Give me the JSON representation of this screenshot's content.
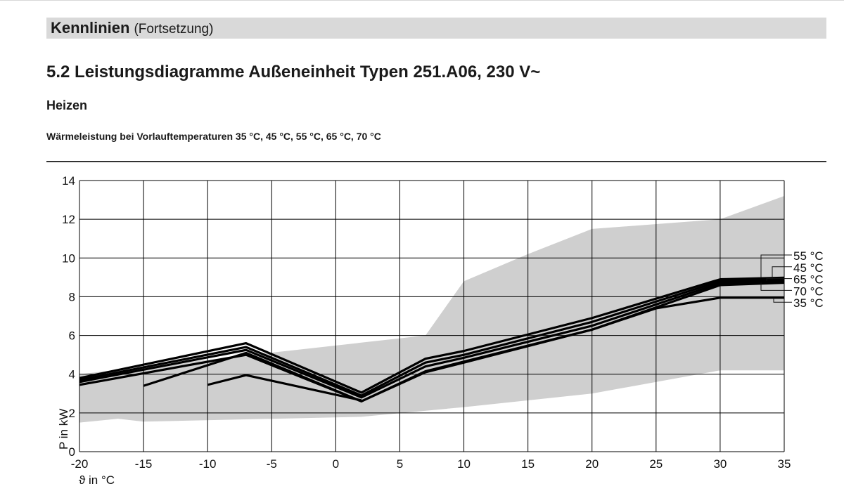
{
  "header": {
    "banner_title": "Kennlinien",
    "banner_subtitle": "(Fortsetzung)",
    "section_title": "5.2 Leistungsdiagramme Außeneinheit Typen 251.A06, 230 V~",
    "subsection_title": "Heizen",
    "caption": "Wärmeleistung bei Vorlauftemperaturen 35 °C, 45 °C, 55 °C, 65 °C, 70 °C"
  },
  "colors": {
    "range_band": "#cfcfcf",
    "curve": "#000000",
    "grid": "#000000"
  },
  "chart_data": {
    "type": "line",
    "xlabel": "ϑ in °C",
    "ylabel": "P in kW",
    "xlim": [
      -20,
      35
    ],
    "ylim": [
      0,
      14
    ],
    "x_ticks": [
      -20,
      -15,
      -10,
      -5,
      0,
      5,
      10,
      15,
      20,
      25,
      30,
      35
    ],
    "y_ticks": [
      0,
      2,
      4,
      6,
      8,
      10,
      12,
      14
    ],
    "x_tick_labels": [
      "-20",
      "-15",
      "-10",
      "-5",
      "0",
      "5",
      "10",
      "15",
      "20",
      "25",
      "30",
      "35"
    ],
    "y_tick_labels": [
      "0",
      "2",
      "4",
      "6",
      "8",
      "10",
      "12",
      "14"
    ],
    "grid": true,
    "legend_labels": [
      "55 °C",
      "45 °C",
      "65 °C",
      "70 °C",
      "35 °C"
    ],
    "range_band": {
      "upper": [
        [
          -20,
          4.0
        ],
        [
          7,
          6.0
        ],
        [
          10,
          8.8
        ],
        [
          15,
          10.2
        ],
        [
          20,
          11.5
        ],
        [
          30,
          12.0
        ],
        [
          35,
          13.2
        ]
      ],
      "lower": [
        [
          -20,
          1.5
        ],
        [
          -17,
          1.7
        ],
        [
          -15,
          1.55
        ],
        [
          2,
          1.8
        ],
        [
          10,
          2.3
        ],
        [
          20,
          3.0
        ],
        [
          30,
          4.2
        ],
        [
          35,
          4.2
        ]
      ]
    },
    "series": [
      {
        "name": "55 °C",
        "points": [
          [
            -20,
            3.8
          ],
          [
            -7,
            5.6
          ],
          [
            2,
            3.05
          ],
          [
            7,
            4.8
          ],
          [
            10,
            5.2
          ],
          [
            20,
            6.9
          ],
          [
            30,
            8.9
          ],
          [
            35,
            8.98
          ]
        ]
      },
      {
        "name": "45 °C",
        "points": [
          [
            -20,
            3.7
          ],
          [
            -7,
            5.4
          ],
          [
            2,
            2.9
          ],
          [
            7,
            4.6
          ],
          [
            10,
            5.0
          ],
          [
            20,
            6.7
          ],
          [
            30,
            8.8
          ],
          [
            35,
            8.9
          ]
        ]
      },
      {
        "name": "65 °C",
        "points": [
          [
            -20,
            3.6
          ],
          [
            -7,
            5.25
          ],
          [
            2,
            2.8
          ],
          [
            7,
            4.4
          ],
          [
            10,
            4.85
          ],
          [
            20,
            6.5
          ],
          [
            30,
            8.7
          ],
          [
            35,
            8.82
          ]
        ]
      },
      {
        "name": "70 °C",
        "points": [
          [
            -20,
            3.45
          ],
          [
            -7,
            5.0
          ],
          [
            2,
            2.6
          ],
          [
            7,
            4.15
          ],
          [
            10,
            4.65
          ],
          [
            20,
            6.3
          ],
          [
            30,
            8.6
          ],
          [
            35,
            8.72
          ]
        ]
      },
      {
        "name": "35 °C",
        "points": [
          [
            -15,
            3.4
          ],
          [
            -7,
            5.1
          ],
          [
            2,
            2.6
          ],
          [
            7,
            4.1
          ],
          [
            10,
            4.6
          ],
          [
            20,
            6.3
          ],
          [
            25,
            7.4
          ],
          [
            30,
            7.95
          ],
          [
            35,
            7.95
          ]
        ]
      },
      {
        "name": "",
        "points": [
          [
            -10,
            3.45
          ],
          [
            -7,
            3.95
          ],
          [
            2,
            2.65
          ]
        ]
      }
    ]
  }
}
